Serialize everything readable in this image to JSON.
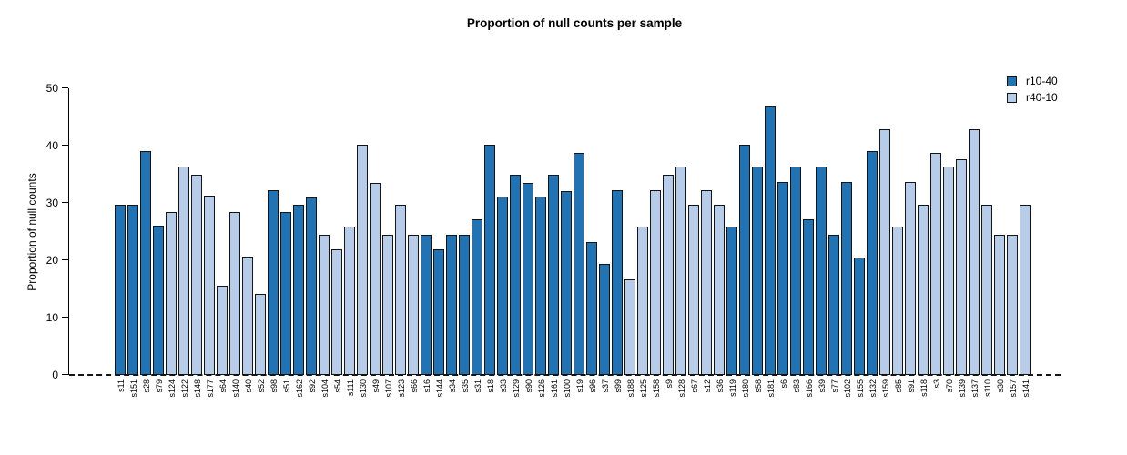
{
  "chart_data": {
    "type": "bar",
    "title": "Proportion of null counts per sample",
    "xlabel": "",
    "ylabel": "Proportion of null counts",
    "ylim": [
      0,
      50
    ],
    "yticks": [
      0,
      10,
      20,
      30,
      40,
      50
    ],
    "grid": false,
    "legend_position": "top-right",
    "zero_line_style": "dashed",
    "colors": {
      "r10-40": "#2273b4",
      "r40-10": "#b7cce8"
    },
    "legend": [
      {
        "label": "r10-40",
        "color": "#2273b4"
      },
      {
        "label": "r40-10",
        "color": "#b7cce8"
      }
    ],
    "bars": [
      {
        "label": "s11",
        "value": 29.7,
        "group": "r10-40"
      },
      {
        "label": "s151",
        "value": 29.7,
        "group": "r10-40"
      },
      {
        "label": "s28",
        "value": 39.0,
        "group": "r10-40"
      },
      {
        "label": "s79",
        "value": 26.0,
        "group": "r10-40"
      },
      {
        "label": "s124",
        "value": 28.4,
        "group": "r40-10"
      },
      {
        "label": "s122",
        "value": 36.4,
        "group": "r40-10"
      },
      {
        "label": "s148",
        "value": 35.0,
        "group": "r40-10"
      },
      {
        "label": "s177",
        "value": 31.2,
        "group": "r40-10"
      },
      {
        "label": "s64",
        "value": 15.5,
        "group": "r40-10"
      },
      {
        "label": "s140",
        "value": 28.4,
        "group": "r40-10"
      },
      {
        "label": "s40",
        "value": 20.6,
        "group": "r40-10"
      },
      {
        "label": "s52",
        "value": 14.1,
        "group": "r40-10"
      },
      {
        "label": "s98",
        "value": 32.3,
        "group": "r10-40"
      },
      {
        "label": "s51",
        "value": 28.4,
        "group": "r10-40"
      },
      {
        "label": "s162",
        "value": 29.7,
        "group": "r10-40"
      },
      {
        "label": "s92",
        "value": 31.0,
        "group": "r10-40"
      },
      {
        "label": "s104",
        "value": 24.4,
        "group": "r40-10"
      },
      {
        "label": "s54",
        "value": 21.9,
        "group": "r40-10"
      },
      {
        "label": "s111",
        "value": 25.9,
        "group": "r40-10"
      },
      {
        "label": "s130",
        "value": 40.1,
        "group": "r40-10"
      },
      {
        "label": "s49",
        "value": 33.5,
        "group": "r40-10"
      },
      {
        "label": "s107",
        "value": 24.4,
        "group": "r40-10"
      },
      {
        "label": "s123",
        "value": 29.7,
        "group": "r40-10"
      },
      {
        "label": "s66",
        "value": 24.4,
        "group": "r40-10"
      },
      {
        "label": "s16",
        "value": 24.4,
        "group": "r10-40"
      },
      {
        "label": "s144",
        "value": 21.9,
        "group": "r10-40"
      },
      {
        "label": "s34",
        "value": 24.4,
        "group": "r10-40"
      },
      {
        "label": "s35",
        "value": 24.4,
        "group": "r10-40"
      },
      {
        "label": "s31",
        "value": 27.2,
        "group": "r10-40"
      },
      {
        "label": "s18",
        "value": 40.1,
        "group": "r10-40"
      },
      {
        "label": "s33",
        "value": 31.1,
        "group": "r10-40"
      },
      {
        "label": "s129",
        "value": 35.0,
        "group": "r10-40"
      },
      {
        "label": "s90",
        "value": 33.5,
        "group": "r10-40"
      },
      {
        "label": "s126",
        "value": 31.1,
        "group": "r10-40"
      },
      {
        "label": "s161",
        "value": 35.0,
        "group": "r10-40"
      },
      {
        "label": "s100",
        "value": 32.0,
        "group": "r10-40"
      },
      {
        "label": "s19",
        "value": 38.8,
        "group": "r10-40"
      },
      {
        "label": "s96",
        "value": 23.2,
        "group": "r10-40"
      },
      {
        "label": "s37",
        "value": 19.3,
        "group": "r10-40"
      },
      {
        "label": "s99",
        "value": 32.3,
        "group": "r10-40"
      },
      {
        "label": "s188",
        "value": 16.6,
        "group": "r40-10"
      },
      {
        "label": "s125",
        "value": 25.9,
        "group": "r40-10"
      },
      {
        "label": "s158",
        "value": 32.3,
        "group": "r40-10"
      },
      {
        "label": "s9",
        "value": 35.0,
        "group": "r40-10"
      },
      {
        "label": "s128",
        "value": 36.4,
        "group": "r40-10"
      },
      {
        "label": "s67",
        "value": 29.7,
        "group": "r40-10"
      },
      {
        "label": "s12",
        "value": 32.3,
        "group": "r40-10"
      },
      {
        "label": "s36",
        "value": 29.7,
        "group": "r40-10"
      },
      {
        "label": "s119",
        "value": 25.9,
        "group": "r10-40"
      },
      {
        "label": "s180",
        "value": 40.1,
        "group": "r10-40"
      },
      {
        "label": "s58",
        "value": 36.4,
        "group": "r10-40"
      },
      {
        "label": "s181",
        "value": 46.8,
        "group": "r10-40"
      },
      {
        "label": "s6",
        "value": 33.7,
        "group": "r10-40"
      },
      {
        "label": "s83",
        "value": 36.4,
        "group": "r10-40"
      },
      {
        "label": "s166",
        "value": 27.2,
        "group": "r10-40"
      },
      {
        "label": "s39",
        "value": 36.4,
        "group": "r10-40"
      },
      {
        "label": "s77",
        "value": 24.4,
        "group": "r10-40"
      },
      {
        "label": "s102",
        "value": 33.7,
        "group": "r10-40"
      },
      {
        "label": "s155",
        "value": 20.4,
        "group": "r10-40"
      },
      {
        "label": "s132",
        "value": 39.0,
        "group": "r10-40"
      },
      {
        "label": "s159",
        "value": 42.8,
        "group": "r40-10"
      },
      {
        "label": "s85",
        "value": 25.9,
        "group": "r40-10"
      },
      {
        "label": "s91",
        "value": 33.7,
        "group": "r40-10"
      },
      {
        "label": "s118",
        "value": 29.7,
        "group": "r40-10"
      },
      {
        "label": "s3",
        "value": 38.8,
        "group": "r40-10"
      },
      {
        "label": "s70",
        "value": 36.4,
        "group": "r40-10"
      },
      {
        "label": "s139",
        "value": 37.7,
        "group": "r40-10"
      },
      {
        "label": "s137",
        "value": 42.8,
        "group": "r40-10"
      },
      {
        "label": "s110",
        "value": 29.7,
        "group": "r40-10"
      },
      {
        "label": "s30",
        "value": 24.4,
        "group": "r40-10"
      },
      {
        "label": "s157",
        "value": 24.4,
        "group": "r40-10"
      },
      {
        "label": "s141",
        "value": 29.7,
        "group": "r40-10"
      }
    ]
  }
}
